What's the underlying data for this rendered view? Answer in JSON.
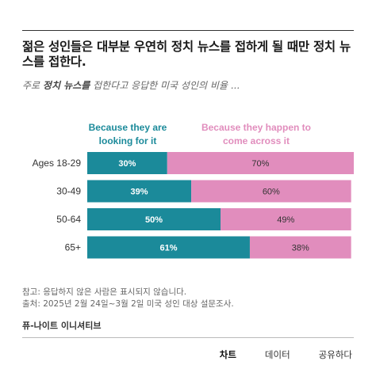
{
  "header": {
    "title": "젊은 성인들은 대부분 우연히 정치 뉴스를 접하게 될 때만 정치 뉴스를 접한다.",
    "subtitle_pre": "주로 ",
    "subtitle_bold": "정치 뉴스를",
    "subtitle_post": " 접한다고 응답한 미국 성인의 비율 ..."
  },
  "chart_data": {
    "type": "bar",
    "stacked": true,
    "orientation": "horizontal",
    "categories": [
      "Ages 18-29",
      "30-49",
      "50-64",
      "65+"
    ],
    "series": [
      {
        "name": "Because they are looking for it",
        "values": [
          30,
          39,
          50,
          61
        ],
        "labels": [
          "30%",
          "39%",
          "50%",
          "61%"
        ],
        "color": "#1b8a9a"
      },
      {
        "name": "Because they happen to come across it",
        "values": [
          70,
          60,
          49,
          38
        ],
        "labels": [
          "70%",
          "60%",
          "49%",
          "38%"
        ],
        "color": "#e18dbd"
      }
    ],
    "xlim": [
      0,
      100
    ],
    "legend_placement": "top",
    "grid": false
  },
  "legend": {
    "looking_line1": "Because they are",
    "looking_line2": "looking for it",
    "across_line1": "Because they happen to",
    "across_line2": "come across it"
  },
  "footer": {
    "note": "참고: 응답하지 않은 사람은 표시되지 않습니다.",
    "source": "출처: 2025년 2월 24일~3월 2일 미국 성인 대상 설문조사.",
    "org": "퓨-나이트 이니셔티브"
  },
  "tabs": [
    {
      "label": "차트",
      "active": true
    },
    {
      "label": "데이터",
      "active": false
    },
    {
      "label": "공유하다",
      "active": false
    }
  ]
}
